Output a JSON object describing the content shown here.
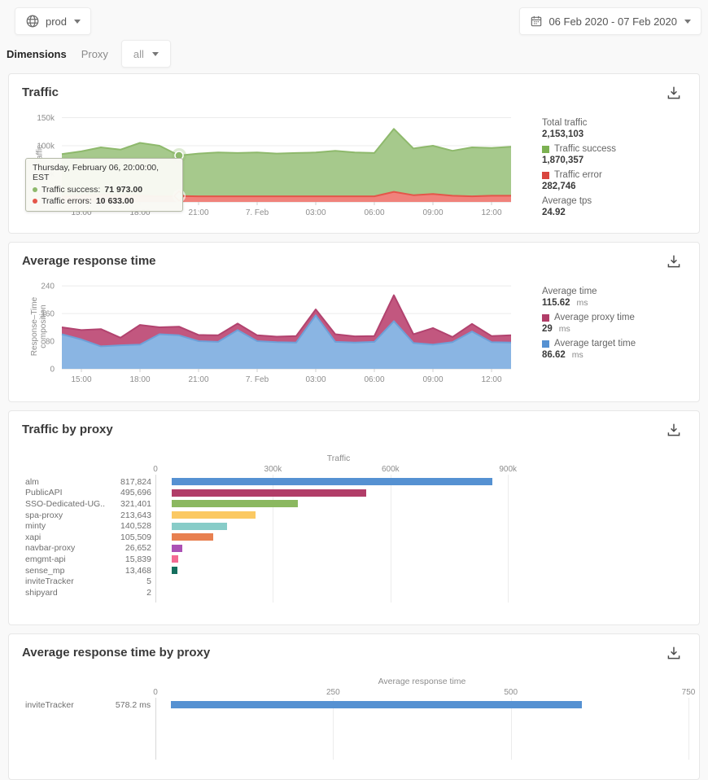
{
  "topbar": {
    "env_label": "prod",
    "date_range": "06 Feb 2020 - 07 Feb 2020"
  },
  "filters": {
    "dimensions_label": "Dimensions",
    "dimension_name": "Proxy",
    "dimension_value": "all"
  },
  "cards": {
    "traffic": {
      "title": "Traffic",
      "ylabel": "Traffic",
      "legend": [
        {
          "label": "Total traffic",
          "value": "2,153,103"
        },
        {
          "label": "Traffic success",
          "value": "1,870,357",
          "swatch": "#7cb152"
        },
        {
          "label": "Traffic error",
          "value": "282,746",
          "swatch": "#d9453e"
        },
        {
          "label": "Average tps",
          "value": "24.92"
        }
      ],
      "tooltip": {
        "title": "Thursday, February 06, 20:00:00, EST",
        "rows": [
          {
            "label": "Traffic success:",
            "value": "71 973.00",
            "color": "#8eb96c"
          },
          {
            "label": "Traffic errors:",
            "value": "10 633.00",
            "color": "#e4564a"
          }
        ]
      }
    },
    "response": {
      "title": "Average response time",
      "ylabel_lines": [
        "Response–Time",
        "composition"
      ],
      "legend": [
        {
          "label": "Average time",
          "value": "115.62",
          "unit": "ms"
        },
        {
          "label": "Average proxy time",
          "value": "29",
          "unit": "ms",
          "swatch": "#b13d68"
        },
        {
          "label": "Average target time",
          "value": "86.62",
          "unit": "ms",
          "swatch": "#5591d2"
        }
      ]
    },
    "proxy_traffic": {
      "title": "Traffic by proxy"
    },
    "proxy_response": {
      "title": "Average response time by proxy"
    }
  },
  "chart_data": [
    {
      "type": "area",
      "stacked": true,
      "name": "traffic-over-time",
      "title": "Traffic",
      "ylabel": "Traffic",
      "ymax": 155000,
      "yticks": [
        {
          "v": 0,
          "label": "0"
        },
        {
          "v": 50000,
          "label": "50k"
        },
        {
          "v": 100000,
          "label": "100k"
        },
        {
          "v": 150000,
          "label": "150k"
        }
      ],
      "x": [
        "14:00",
        "15:00",
        "16:00",
        "17:00",
        "18:00",
        "19:00",
        "20:00",
        "21:00",
        "22:00",
        "23:00",
        "7. Feb",
        "01:00",
        "02:00",
        "03:00",
        "04:00",
        "05:00",
        "06:00",
        "07:00",
        "08:00",
        "09:00",
        "10:00",
        "11:00",
        "12:00",
        "13:00"
      ],
      "xticks": [
        {
          "i": 1,
          "label": "15:00"
        },
        {
          "i": 4,
          "label": "18:00"
        },
        {
          "i": 7,
          "label": "21:00"
        },
        {
          "i": 10,
          "label": "7. Feb"
        },
        {
          "i": 13,
          "label": "03:00"
        },
        {
          "i": 16,
          "label": "06:00"
        },
        {
          "i": 19,
          "label": "09:00"
        },
        {
          "i": 22,
          "label": "12:00"
        }
      ],
      "series": [
        {
          "name": "Traffic errors",
          "fill": "#f0827b",
          "line": "#e4564a",
          "values": [
            10000,
            11000,
            13000,
            12000,
            11000,
            10000,
            10633,
            10000,
            10000,
            10000,
            10000,
            10000,
            10000,
            10000,
            10000,
            10000,
            10000,
            18000,
            12000,
            14000,
            11000,
            10000,
            11000,
            11000
          ]
        },
        {
          "name": "Traffic success",
          "fill": "#a6c98c",
          "line": "#8eb96c",
          "values": [
            75000,
            79000,
            84000,
            81000,
            94000,
            90000,
            71973,
            76000,
            78000,
            77000,
            78000,
            76000,
            77000,
            78000,
            81000,
            78000,
            77000,
            112000,
            83000,
            86000,
            80000,
            87000,
            85000,
            87000
          ]
        }
      ],
      "marker_index": 6
    },
    {
      "type": "area",
      "stacked": true,
      "name": "response-time-over-time",
      "title": "Average response time",
      "ylabel": "Response–Time composition",
      "ymax": 252,
      "yticks": [
        {
          "v": 0,
          "label": "0"
        },
        {
          "v": 80,
          "label": "80"
        },
        {
          "v": 160,
          "label": "160"
        },
        {
          "v": 240,
          "label": "240"
        }
      ],
      "x": [
        "14:00",
        "15:00",
        "16:00",
        "17:00",
        "18:00",
        "19:00",
        "20:00",
        "21:00",
        "22:00",
        "23:00",
        "7. Feb",
        "01:00",
        "02:00",
        "03:00",
        "04:00",
        "05:00",
        "06:00",
        "07:00",
        "08:00",
        "09:00",
        "10:00",
        "11:00",
        "12:00",
        "13:00"
      ],
      "xticks": [
        {
          "i": 1,
          "label": "15:00"
        },
        {
          "i": 4,
          "label": "18:00"
        },
        {
          "i": 7,
          "label": "21:00"
        },
        {
          "i": 10,
          "label": "7. Feb"
        },
        {
          "i": 13,
          "label": "03:00"
        },
        {
          "i": 16,
          "label": "06:00"
        },
        {
          "i": 19,
          "label": "09:00"
        },
        {
          "i": 22,
          "label": "12:00"
        }
      ],
      "series": [
        {
          "name": "Average target time",
          "fill": "#8ab5e3",
          "line": "#6ea0d8",
          "values": [
            100,
            85,
            65,
            68,
            70,
            100,
            97,
            80,
            78,
            112,
            80,
            77,
            76,
            155,
            78,
            76,
            78,
            138,
            75,
            70,
            77,
            108,
            77,
            76
          ]
        },
        {
          "name": "Average proxy time",
          "fill": "#c2577f",
          "line": "#b2436f",
          "values": [
            20,
            27,
            50,
            22,
            57,
            20,
            25,
            18,
            19,
            19,
            17,
            16,
            19,
            17,
            22,
            18,
            17,
            75,
            25,
            48,
            15,
            22,
            18,
            21
          ]
        }
      ]
    },
    {
      "type": "bar",
      "orientation": "horizontal",
      "name": "traffic-by-proxy",
      "title": "Traffic by proxy",
      "xlabel": "Traffic",
      "xmax": 935000,
      "xticks": [
        {
          "v": 0,
          "label": "0"
        },
        {
          "v": 300000,
          "label": "300k"
        },
        {
          "v": 600000,
          "label": "600k"
        },
        {
          "v": 900000,
          "label": "900k"
        }
      ],
      "categories": [
        "alm",
        "PublicAPI",
        "SSO-Dedicated-UG...",
        "spa-proxy",
        "minty",
        "xapi",
        "navbar-proxy",
        "emgmt-api",
        "sense_mp",
        "inviteTracker",
        "shipyard"
      ],
      "values": [
        817824,
        495696,
        321401,
        213643,
        140528,
        105509,
        26652,
        15839,
        13468,
        5,
        2
      ],
      "value_labels": [
        "817,824",
        "495,696",
        "321,401",
        "213,643",
        "140,528",
        "105,509",
        "26,652",
        "15,839",
        "13,468",
        "5",
        "2"
      ],
      "colors": [
        "#5591d2",
        "#b13d68",
        "#8bb860",
        "#fbc963",
        "#87ccc8",
        "#e88050",
        "#ab51b5",
        "#f46a93",
        "#156f5e",
        "#5591d2",
        "#b13d68"
      ]
    },
    {
      "type": "bar",
      "orientation": "horizontal",
      "name": "response-time-by-proxy",
      "title": "Average response time by proxy",
      "xlabel": "Average response time",
      "xmax": 750,
      "xticks": [
        {
          "v": 0,
          "label": "0"
        },
        {
          "v": 250,
          "label": "250"
        },
        {
          "v": 500,
          "label": "500"
        },
        {
          "v": 750,
          "label": "750"
        }
      ],
      "categories": [
        "inviteTracker"
      ],
      "values": [
        578.2
      ],
      "value_labels": [
        "578.2 ms"
      ],
      "colors": [
        "#5591d2"
      ]
    }
  ]
}
